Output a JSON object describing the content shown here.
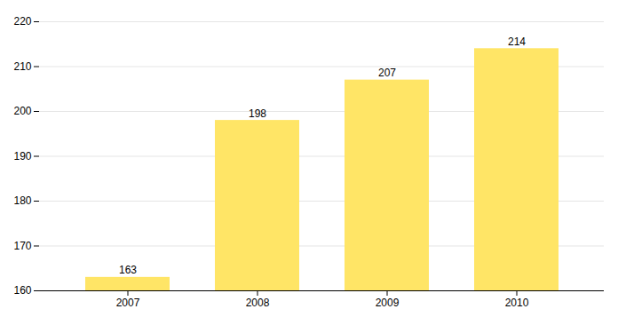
{
  "chart_data": {
    "type": "bar",
    "categories": [
      "2007",
      "2008",
      "2009",
      "2010"
    ],
    "values": [
      163,
      198,
      207,
      214
    ],
    "color": "#FFE566",
    "ylim": [
      160,
      220
    ],
    "yticks": [
      160,
      170,
      180,
      190,
      200,
      210,
      220
    ],
    "grid": true,
    "data_labels": true
  }
}
